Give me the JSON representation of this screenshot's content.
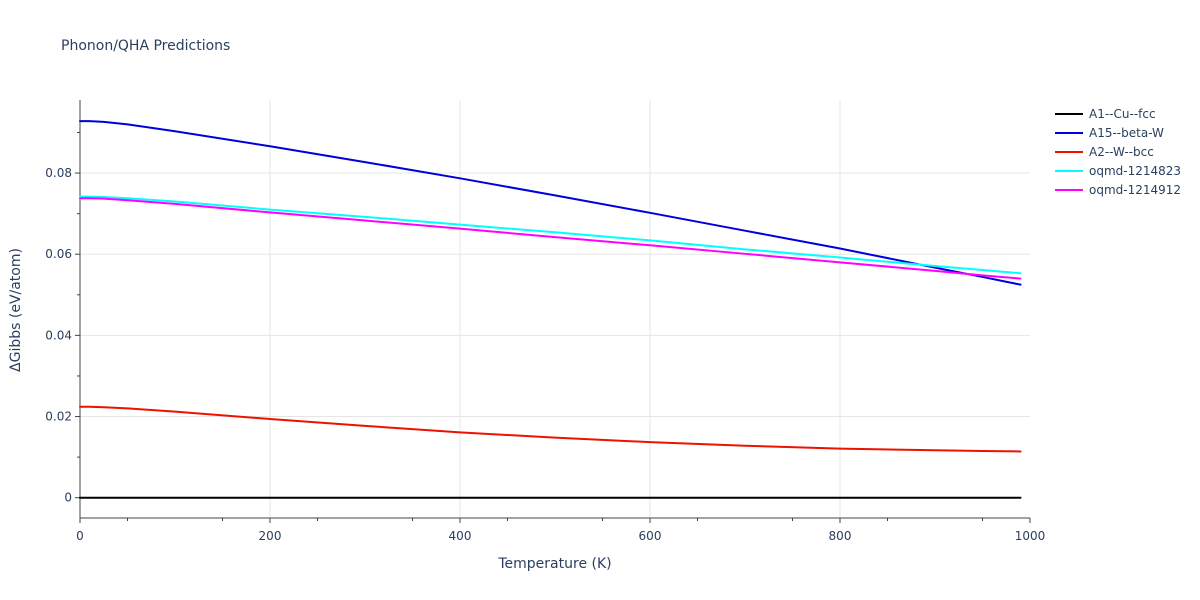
{
  "chart_data": {
    "type": "line",
    "title": "Phonon/QHA Predictions",
    "xlabel": "Temperature (K)",
    "ylabel": "ΔGibbs (eV/atom)",
    "xlim": [
      0,
      1000
    ],
    "ylim": [
      -0.005,
      0.098
    ],
    "xticks": [
      0,
      200,
      400,
      600,
      800,
      1000
    ],
    "xtick_labels": [
      "0",
      "200",
      "400",
      "600",
      "800",
      "1000"
    ],
    "yticks": [
      0,
      0.02,
      0.04,
      0.06,
      0.08
    ],
    "ytick_labels": [
      "0",
      "0.02",
      "0.04",
      "0.06",
      "0.08"
    ],
    "grid": true,
    "legend_position": "top-right",
    "series": [
      {
        "name": "A1--Cu--fcc",
        "color": "#000000",
        "x": [
          0,
          990
        ],
        "y": [
          0,
          0
        ]
      },
      {
        "name": "A15--beta-W",
        "color": "#0000dd",
        "x": [
          0,
          10,
          25,
          50,
          100,
          200,
          300,
          400,
          500,
          600,
          700,
          800,
          900,
          950,
          990
        ],
        "y": [
          0.0928,
          0.0928,
          0.0926,
          0.092,
          0.0903,
          0.0866,
          0.0827,
          0.0787,
          0.0745,
          0.0702,
          0.0658,
          0.0614,
          0.0567,
          0.0544,
          0.0525
        ]
      },
      {
        "name": "A2--W--bcc",
        "color": "#ee1100",
        "x": [
          0,
          10,
          25,
          50,
          100,
          200,
          300,
          400,
          500,
          600,
          700,
          800,
          900,
          950,
          990
        ],
        "y": [
          0.0224,
          0.0224,
          0.0223,
          0.022,
          0.0212,
          0.0194,
          0.0177,
          0.0161,
          0.0148,
          0.0137,
          0.0128,
          0.0121,
          0.0117,
          0.0115,
          0.0114
        ]
      },
      {
        "name": "oqmd-1214823",
        "color": "#00ffff",
        "x": [
          0,
          10,
          25,
          50,
          100,
          200,
          300,
          400,
          500,
          600,
          700,
          800,
          900,
          950,
          990
        ],
        "y": [
          0.0742,
          0.0742,
          0.0741,
          0.0738,
          0.073,
          0.071,
          0.0692,
          0.0673,
          0.0654,
          0.0634,
          0.0612,
          0.0592,
          0.0571,
          0.0561,
          0.0553
        ]
      },
      {
        "name": "oqmd-1214912",
        "color": "#ff00ff",
        "x": [
          0,
          10,
          25,
          50,
          100,
          200,
          300,
          400,
          500,
          600,
          700,
          800,
          900,
          950,
          990
        ],
        "y": [
          0.0738,
          0.0738,
          0.0737,
          0.0733,
          0.0724,
          0.0703,
          0.0683,
          0.0663,
          0.0642,
          0.0622,
          0.0601,
          0.058,
          0.0559,
          0.0548,
          0.054
        ]
      }
    ]
  }
}
